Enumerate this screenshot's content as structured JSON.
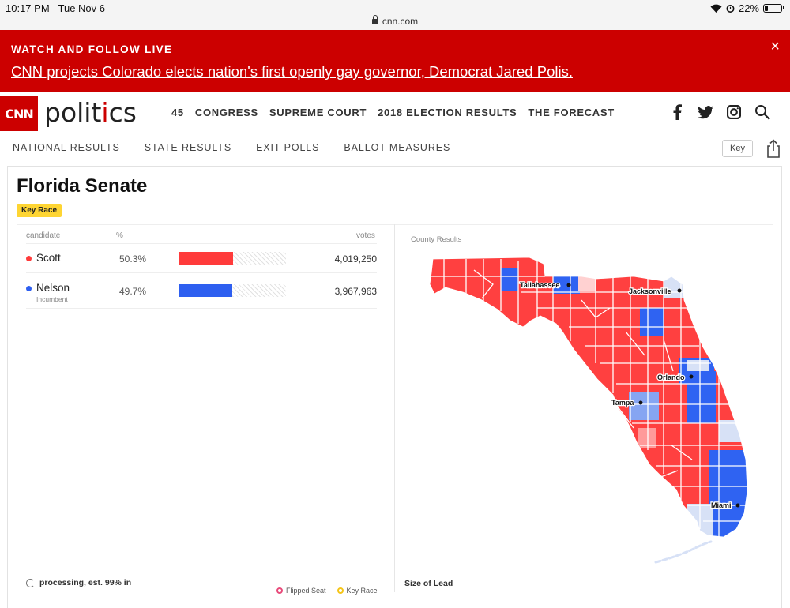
{
  "status_bar": {
    "time": "10:17 PM",
    "date": "Tue Nov 6",
    "url": "cnn.com",
    "battery": "22%",
    "battery_level": 0.22
  },
  "banner": {
    "label": "WATCH AND FOLLOW LIVE",
    "headline": "CNN projects Colorado elects nation's first openly gay governor, Democrat Jared Polis.",
    "close": "×"
  },
  "header": {
    "logo": "CNN",
    "section_word": "politics",
    "nav": [
      "45",
      "CONGRESS",
      "SUPREME COURT",
      "2018 ELECTION RESULTS",
      "THE FORECAST"
    ],
    "social_icons": [
      "facebook-icon",
      "twitter-icon",
      "instagram-icon",
      "search-icon"
    ]
  },
  "subnav": {
    "items": [
      "NATIONAL RESULTS",
      "STATE RESULTS",
      "EXIT POLLS",
      "BALLOT MEASURES"
    ],
    "key_button": "Key"
  },
  "race": {
    "title": "Florida Senate",
    "badge": "Key Race",
    "columns": {
      "candidate": "candidate",
      "pct": "%",
      "votes": "votes"
    },
    "candidates": [
      {
        "name": "Scott",
        "note": "",
        "pct": "50.3%",
        "share": 0.503,
        "votes": "4,019,250",
        "color": "#ff3b3b"
      },
      {
        "name": "Nelson",
        "note": "Incumbent",
        "pct": "49.7%",
        "share": 0.497,
        "votes": "3,967,963",
        "color": "#2e5ff0"
      }
    ],
    "processing": "processing, est. 99% in",
    "legend": [
      "Flipped Seat",
      "Key Race"
    ]
  },
  "map": {
    "label": "County Results",
    "size_of_lead": "Size of Lead",
    "cities": [
      "Tallahassee",
      "Jacksonville",
      "Orlando",
      "Tampa",
      "Miami"
    ],
    "colors": {
      "rep": "#ff4040",
      "dem": "#2f63f2",
      "dem_light": "#86a5f2",
      "dem_faint": "#d7e1f6",
      "rep_light": "#ff9a9a",
      "rep_faint": "#ffd1d1"
    }
  }
}
